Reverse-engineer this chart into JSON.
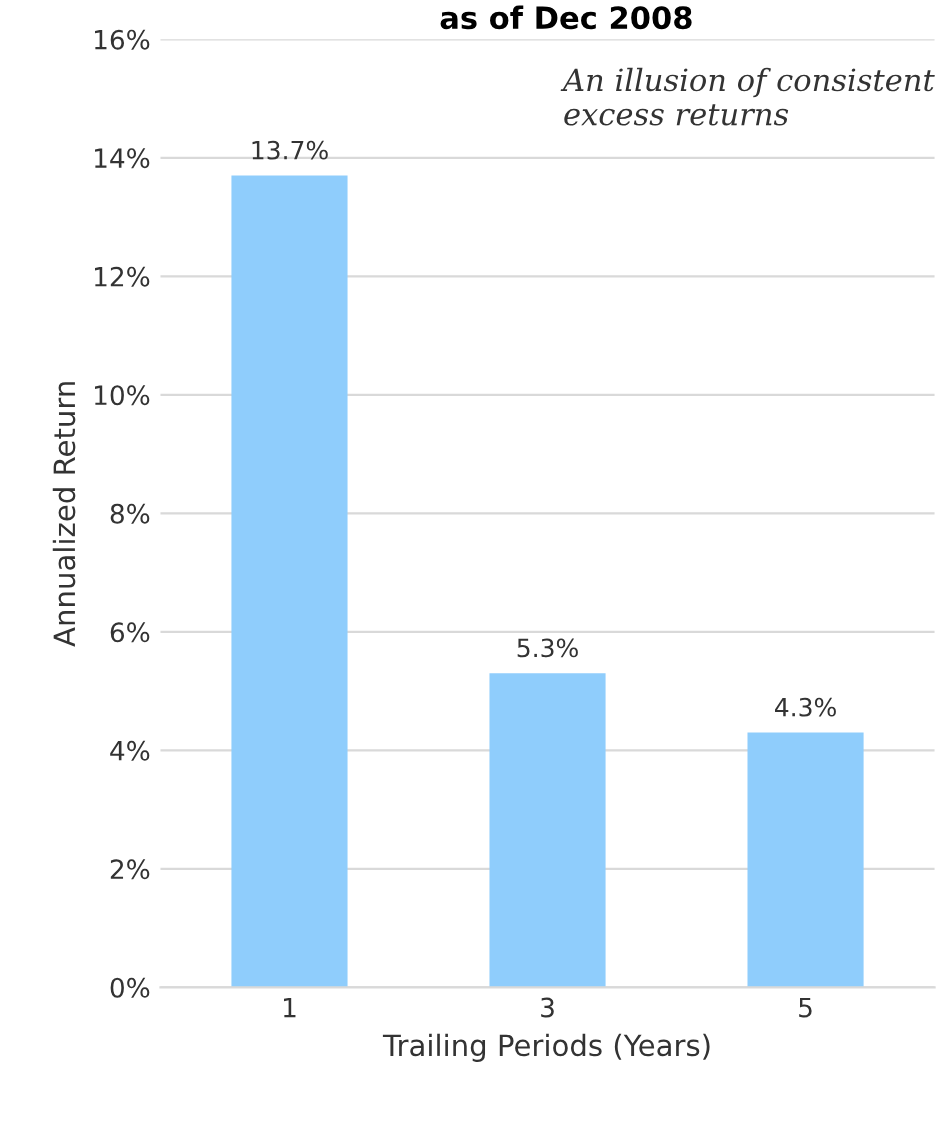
{
  "chart_data": {
    "type": "bar",
    "title": "as of Dec 2008",
    "xlabel": "Trailing Periods (Years)",
    "ylabel": "Annualized Return",
    "categories": [
      "1",
      "3",
      "5"
    ],
    "values": [
      13.7,
      5.3,
      4.3
    ],
    "color": "#8fcdfc",
    "value_labels": [
      "13.7%",
      "5.3%",
      "4.3%"
    ],
    "ylim": [
      0,
      16
    ],
    "yticks": [
      {
        "value": 0,
        "label": "0%"
      },
      {
        "value": 2,
        "label": "2%"
      },
      {
        "value": 4,
        "label": "4%"
      },
      {
        "value": 6,
        "label": "6%"
      },
      {
        "value": 8,
        "label": "8%"
      },
      {
        "value": 10,
        "label": "10%"
      },
      {
        "value": 12,
        "label": "12%"
      },
      {
        "value": 14,
        "label": "14%"
      },
      {
        "value": 16,
        "label": "16%"
      }
    ],
    "grid": "y",
    "legend": false,
    "annotations": [
      "An illusion of consistent\nexcess returns"
    ]
  }
}
